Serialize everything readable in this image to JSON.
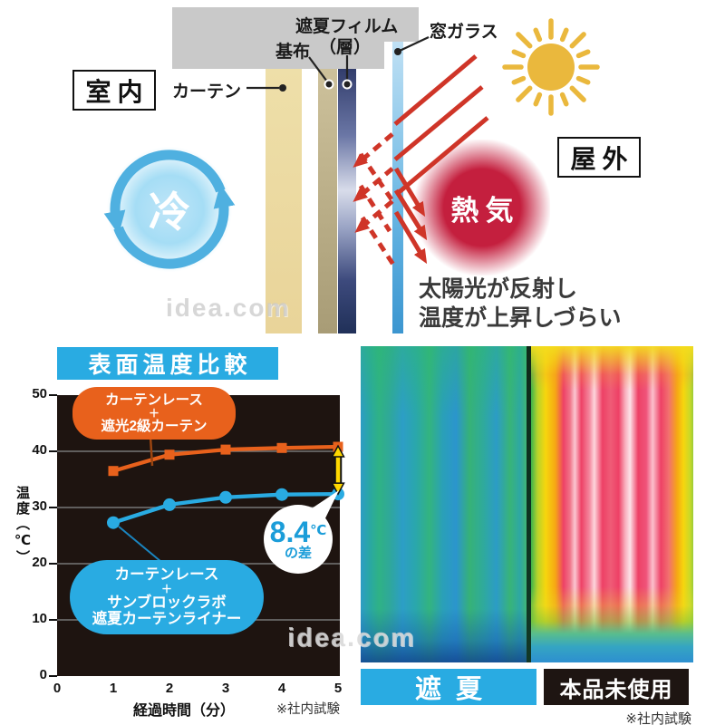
{
  "watermark": {
    "text": "idea.com"
  },
  "diagram": {
    "indoor": "室内",
    "outdoor": "屋外",
    "cool": "冷",
    "heat": "熱気",
    "curtain": "カーテン",
    "base_fabric": "基布",
    "film_line1": "遮夏フィルム",
    "film_line2": "（層）",
    "glass": "窓ガラス",
    "caption1": "太陽光が反射し",
    "caption2": "温度が上昇しづらい",
    "colors": {
      "sun": "#eab83d",
      "ray": "#cf3528",
      "cycle": "#4fb0e0",
      "heat_glow": "#c41f3e"
    }
  },
  "chart_data": {
    "type": "line",
    "title": "表面温度比較",
    "x": [
      1,
      2,
      3,
      4,
      5
    ],
    "xlim": [
      0,
      5
    ],
    "ylim": [
      0,
      50
    ],
    "xticks": [
      0,
      1,
      2,
      3,
      4,
      5
    ],
    "yticks": [
      0,
      10,
      20,
      30,
      40,
      50
    ],
    "xlabel": "経過時間（分）",
    "ylabel": "温度（℃）",
    "grid": true,
    "legend_position": "callouts-on-plot",
    "plot_background": "#1e1410",
    "series": [
      {
        "name": "カーテンレース＋遮光2級カーテン",
        "label_lines": [
          "カーテンレース",
          "＋",
          "遮光2級カーテン"
        ],
        "color": "#e8611c",
        "marker": "square",
        "values": [
          36.5,
          39.4,
          40.3,
          40.6,
          40.8
        ]
      },
      {
        "name": "カーテンレース＋サンブロックラボ遮夏カーテンライナー",
        "label_lines": [
          "カーテンレース",
          "＋",
          "サンブロックラボ",
          "遮夏カーテンライナー"
        ],
        "color": "#29abe2",
        "marker": "circle",
        "values": [
          27.3,
          30.5,
          31.8,
          32.3,
          32.4
        ]
      }
    ],
    "annotation": {
      "value": "8.4",
      "unit": "℃",
      "suffix": "の差",
      "arrow_color": "#ffd800"
    },
    "note": "※社内試験"
  },
  "thermal": {
    "left_label": "遮夏",
    "right_label": "本品未使用",
    "note": "※社内試験"
  }
}
